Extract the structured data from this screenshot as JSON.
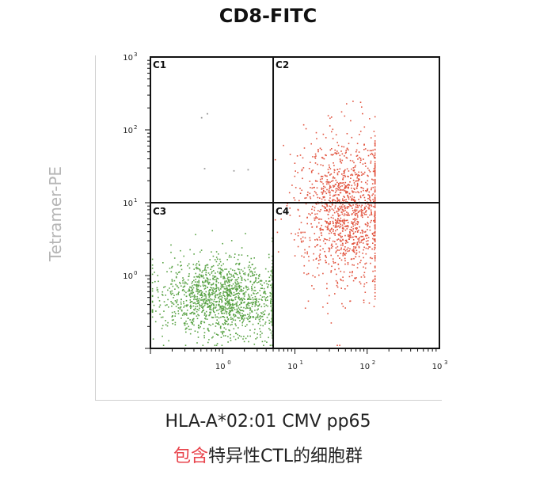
{
  "chart_data": {
    "type": "scatter",
    "title": "CD8-FITC",
    "ylabel": "Tetramer-PE",
    "x_scale": "log",
    "y_scale": "log",
    "xlim": [
      0.1,
      1000
    ],
    "ylim": [
      0.1,
      1000
    ],
    "x_ticks": [
      {
        "label": "10",
        "exp": "0",
        "value": 1
      },
      {
        "label": "10",
        "exp": "1",
        "value": 10
      },
      {
        "label": "10",
        "exp": "2",
        "value": 100
      },
      {
        "label": "10",
        "exp": "3",
        "value": 1000
      }
    ],
    "y_ticks": [
      {
        "label": "10",
        "exp": "0",
        "value": 1
      },
      {
        "label": "10",
        "exp": "1",
        "value": 10
      },
      {
        "label": "10",
        "exp": "2",
        "value": 100
      },
      {
        "label": "10",
        "exp": "3",
        "value": 1000
      }
    ],
    "gate": {
      "x": 5,
      "y": 10
    },
    "quadrants": [
      "C1",
      "C2",
      "C3",
      "C4"
    ],
    "populations": [
      {
        "color": "#5aa346",
        "count": 1500,
        "center": [
          1.0,
          0.5
        ],
        "spread": [
          0.42,
          0.28
        ]
      },
      {
        "color": "#e2543f",
        "count": 1300,
        "center": [
          50,
          8
        ],
        "spread": [
          0.32,
          0.5
        ]
      }
    ],
    "sparse_points": [
      [
        0.5,
        150
      ],
      [
        0.6,
        170
      ],
      [
        0.55,
        30
      ],
      [
        1.4,
        28
      ],
      [
        2.2,
        29
      ]
    ],
    "colors": {
      "frame": "#111111",
      "green": "#5aa346",
      "red": "#e2543f"
    }
  },
  "caption": {
    "line1": "HLA-A*02:01 CMV pp65",
    "line2_highlight": "包含",
    "line2_rest": "特异性CTL的细胞群"
  }
}
